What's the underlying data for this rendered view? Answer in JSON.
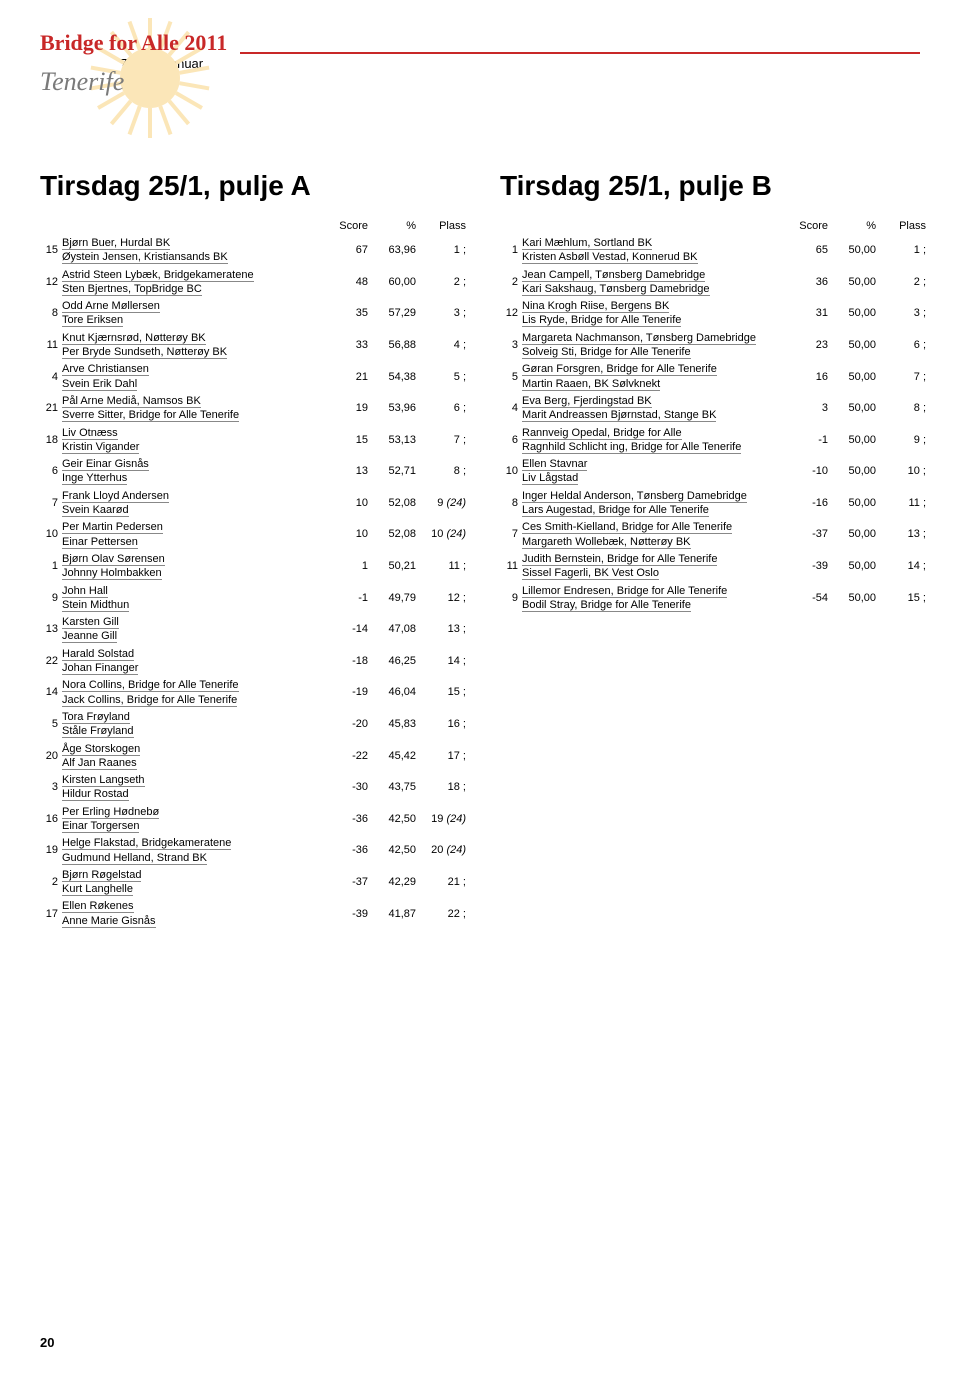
{
  "header": {
    "brand": "Bridge for Alle 2011",
    "dates": "7. – 30. januar",
    "location": "Tenerife"
  },
  "columns_header": {
    "score": "Score",
    "pct": "%",
    "plass": "Plass"
  },
  "puljeA": {
    "title": "Tirsdag 25/1, pulje A",
    "rows": [
      {
        "n": "15",
        "p1": "Bjørn Buer, Hurdal BK",
        "p2": "Øystein Jensen, Kristiansands BK",
        "score": "67",
        "pct": "63,96",
        "plass": "1 ;"
      },
      {
        "n": "12",
        "p1": "Astrid Steen Lybæk, Bridgekameratene",
        "p2": "Sten Bjertnes, TopBridge BC",
        "score": "48",
        "pct": "60,00",
        "plass": "2 ;"
      },
      {
        "n": "8",
        "p1": "Odd Arne Møllersen",
        "p2": "Tore Eriksen",
        "score": "35",
        "pct": "57,29",
        "plass": "3 ;"
      },
      {
        "n": "11",
        "p1": "Knut Kjærnsrød, Nøtterøy BK",
        "p2": "Per Bryde Sundseth, Nøtterøy BK",
        "score": "33",
        "pct": "56,88",
        "plass": "4 ;"
      },
      {
        "n": "4",
        "p1": "Arve Christiansen",
        "p2": "Svein Erik Dahl",
        "score": "21",
        "pct": "54,38",
        "plass": "5 ;"
      },
      {
        "n": "21",
        "p1": "Pål Arne Mediå, Namsos BK",
        "p2": "Sverre Sitter, Bridge for Alle Tenerife",
        "score": "19",
        "pct": "53,96",
        "plass": "6 ;"
      },
      {
        "n": "18",
        "p1": "Liv Otnæss",
        "p2": "Kristin Vigander",
        "score": "15",
        "pct": "53,13",
        "plass": "7 ;"
      },
      {
        "n": "6",
        "p1": "Geir Einar Gisnås",
        "p2": "Inge Ytterhus",
        "score": "13",
        "pct": "52,71",
        "plass": "8 ;"
      },
      {
        "n": "7",
        "p1": "Frank Lloyd Andersen",
        "p2": "Svein Kaarød",
        "score": "10",
        "pct": "52,08",
        "plass": "9 (24)"
      },
      {
        "n": "10",
        "p1": "Per Martin Pedersen",
        "p2": "Einar Pettersen",
        "score": "10",
        "pct": "52,08",
        "plass": "10 (24)"
      },
      {
        "n": "1",
        "p1": "Bjørn Olav Sørensen",
        "p2": "Johnny Holmbakken",
        "score": "1",
        "pct": "50,21",
        "plass": "11 ;"
      },
      {
        "n": "9",
        "p1": "John Hall",
        "p2": "Stein Midthun",
        "score": "-1",
        "pct": "49,79",
        "plass": "12 ;"
      },
      {
        "n": "13",
        "p1": "Karsten Gill",
        "p2": "Jeanne Gill",
        "score": "-14",
        "pct": "47,08",
        "plass": "13 ;"
      },
      {
        "n": "22",
        "p1": "Harald Solstad",
        "p2": "Johan Finanger",
        "score": "-18",
        "pct": "46,25",
        "plass": "14 ;"
      },
      {
        "n": "14",
        "p1": "Nora Collins, Bridge   for Alle Tenerife",
        "p2": "Jack Collins, Bridge   for Alle Tenerife",
        "score": "-19",
        "pct": "46,04",
        "plass": "15 ;"
      },
      {
        "n": "5",
        "p1": "Tora Frøyland",
        "p2": "Ståle Frøyland",
        "score": "-20",
        "pct": "45,83",
        "plass": "16 ;"
      },
      {
        "n": "20",
        "p1": "Åge Storskogen",
        "p2": "Alf Jan Raanes",
        "score": "-22",
        "pct": "45,42",
        "plass": "17 ;"
      },
      {
        "n": "3",
        "p1": "Kirsten Langseth",
        "p2": "Hildur Rostad",
        "score": "-30",
        "pct": "43,75",
        "plass": "18 ;"
      },
      {
        "n": "16",
        "p1": "Per Erling Hødnebø",
        "p2": "Einar Torgersen",
        "score": "-36",
        "pct": "42,50",
        "plass": "19 (24)"
      },
      {
        "n": "19",
        "p1": "Helge Flakstad, Bridgekameratene",
        "p2": "Gudmund Helland, Strand BK",
        "score": "-36",
        "pct": "42,50",
        "plass": "20 (24)"
      },
      {
        "n": "2",
        "p1": "Bjørn Røgelstad",
        "p2": "Kurt Langhelle",
        "score": "-37",
        "pct": "42,29",
        "plass": "21 ;"
      },
      {
        "n": "17",
        "p1": "Ellen Røkenes",
        "p2": "Anne Marie Gisnås",
        "score": "-39",
        "pct": "41,87",
        "plass": "22 ;"
      }
    ]
  },
  "puljeB": {
    "title": "Tirsdag 25/1, pulje B",
    "rows": [
      {
        "n": "1",
        "p1": "Kari Mæhlum, Sortland BK",
        "p2": "Kristen Asbøll Vestad, Konnerud BK",
        "score": "65",
        "pct": "50,00",
        "plass": "1 ;"
      },
      {
        "n": "2",
        "p1": "Jean Campell, Tønsberg Damebridge",
        "p2": "Kari Sakshaug, Tønsberg Damebridge",
        "score": "36",
        "pct": "50,00",
        "plass": "2 ;"
      },
      {
        "n": "12",
        "p1": "Nina Krogh Riise, Bergens BK",
        "p2": "Lis Ryde, Bridge for Alle Tenerife",
        "score": "31",
        "pct": "50,00",
        "plass": "3 ;"
      },
      {
        "n": "3",
        "p1": "Margareta Nachmanson, Tønsberg Damebridge",
        "p2": "Solveig Sti, Bridge   for Alle Tenerife",
        "score": "23",
        "pct": "50,00",
        "plass": "6 ;"
      },
      {
        "n": "5",
        "p1": "Gøran Forsgren, Bridge for Alle Tenerife",
        "p2": "Martin Raaen, BK Sølvknekt",
        "score": "16",
        "pct": "50,00",
        "plass": "7 ;"
      },
      {
        "n": "4",
        "p1": "Eva Berg, Fjerdingstad BK",
        "p2": "Marit Andreassen Bjørnstad, Stange BK",
        "score": "3",
        "pct": "50,00",
        "plass": "8 ;"
      },
      {
        "n": "6",
        "p1": "Rannveig Opedal, Bridge for Alle",
        "p2": "Ragnhild Schlicht ing, Bridge for Alle Tenerife",
        "score": "-1",
        "pct": "50,00",
        "plass": "9 ;"
      },
      {
        "n": "10",
        "p1": "Ellen Stavnar",
        "p2": "Liv Lågstad",
        "score": "-10",
        "pct": "50,00",
        "plass": "10 ;"
      },
      {
        "n": "8",
        "p1": "Inger Heldal Anderson, Tønsberg Damebridge",
        "p2": "Lars Augestad, Bridge for Alle Tenerife",
        "score": "-16",
        "pct": "50,00",
        "plass": "11 ;"
      },
      {
        "n": "7",
        "p1": "Ces Smith-Kielland, Bridge for Alle Tenerife",
        "p2": "Margareth Wollebæk, Nøtterøy BK",
        "score": "-37",
        "pct": "50,00",
        "plass": "13 ;"
      },
      {
        "n": "11",
        "p1": "Judith Bernstein, Bridge for Alle Tenerife",
        "p2": "Sissel Fagerli, BK Vest Oslo",
        "score": "-39",
        "pct": "50,00",
        "plass": "14 ;"
      },
      {
        "n": "9",
        "p1": "Lillemor Endresen, Bridge for Alle Tenerife",
        "p2": "Bodil Stray, Bridge for Alle Tenerife",
        "score": "-54",
        "pct": "50,00",
        "plass": "15 ;"
      }
    ]
  },
  "pagenum": "20"
}
